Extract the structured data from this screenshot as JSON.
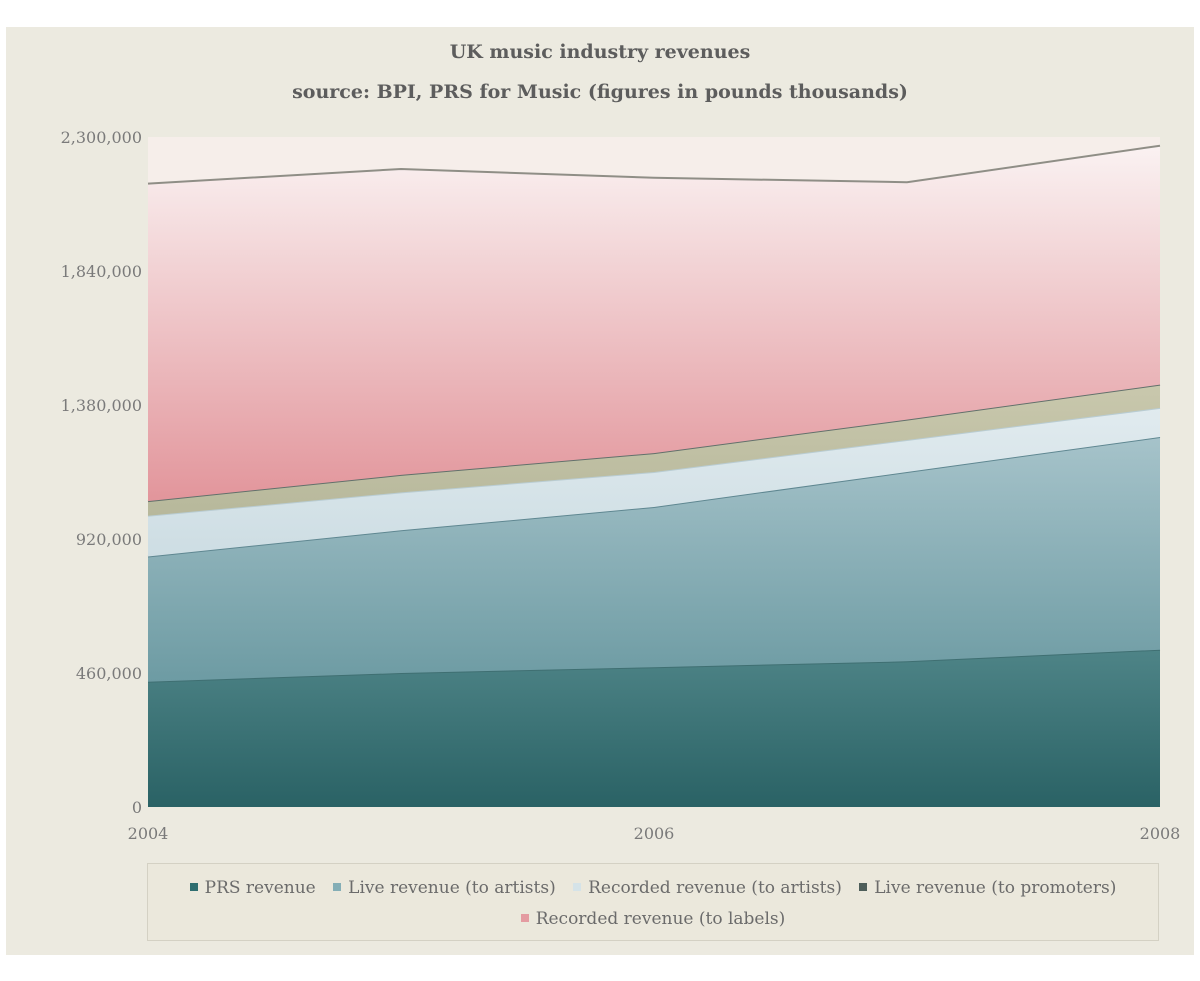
{
  "chart_data": {
    "type": "area",
    "stacked": true,
    "title": "UK music industry revenues",
    "subtitle": "source: BPI, PRS for Music (figures in pounds thousands)",
    "x": [
      2004,
      2005,
      2006,
      2007,
      2008
    ],
    "x_tick_labels": [
      "2004",
      "2006",
      "2008"
    ],
    "y_tick_labels": [
      "0",
      "460,000",
      "920,000",
      "1,380,000",
      "1,840,000",
      "2,300,000"
    ],
    "ylim": [
      0,
      2300000
    ],
    "grid": false,
    "legend_position": "bottom",
    "series": [
      {
        "name": "PRS revenue",
        "color": "#2f6e70",
        "values": [
          430000,
          460000,
          480000,
          500000,
          540000
        ]
      },
      {
        "name": "Live revenue (to artists)",
        "color": "#84aeb6",
        "values": [
          430000,
          490000,
          550000,
          650000,
          730000
        ]
      },
      {
        "name": "Recorded revenue (to artists)",
        "color": "#d5e3e8",
        "values": [
          140000,
          130000,
          120000,
          110000,
          100000
        ]
      },
      {
        "name": "Live revenue (to promoters)",
        "color": "#4e5e5a",
        "values": [
          50000,
          60000,
          65000,
          70000,
          80000
        ]
      },
      {
        "name": "Recorded revenue (to labels)",
        "color": "#e49ba1",
        "values": [
          1090000,
          1050000,
          945000,
          815000,
          820000
        ]
      }
    ]
  }
}
